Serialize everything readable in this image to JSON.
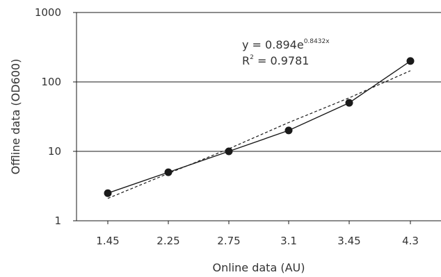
{
  "chart_data": {
    "type": "line",
    "title": "",
    "xlabel": "Online data (AU)",
    "ylabel": "Offline data (OD600)",
    "yscale": "log",
    "ylim": [
      1,
      1000
    ],
    "y_ticks": [
      "1",
      "10",
      "100",
      "1000"
    ],
    "categories": [
      "1.45",
      "2.25",
      "2.75",
      "3.1",
      "3.45",
      "4.3"
    ],
    "series": [
      {
        "values": [
          2.5,
          5,
          10,
          20,
          50,
          200
        ],
        "style": "solid",
        "markers": "filled-circle"
      },
      {
        "values": [
          2.1,
          4.8,
          10.9,
          26.0,
          59.0,
          145.0
        ],
        "style": "dashed",
        "markers": "none"
      }
    ],
    "annotation": {
      "equation_base": "y = 0.894e",
      "equation_exponent": "0.8432x",
      "r2_label": "R",
      "r2_exponent": "2",
      "r2_value": " = 0.9781"
    },
    "grid": "horizontal",
    "colors": {
      "line": "#1a1a1a",
      "grid": "#1a1a1a",
      "text": "#333333"
    }
  }
}
